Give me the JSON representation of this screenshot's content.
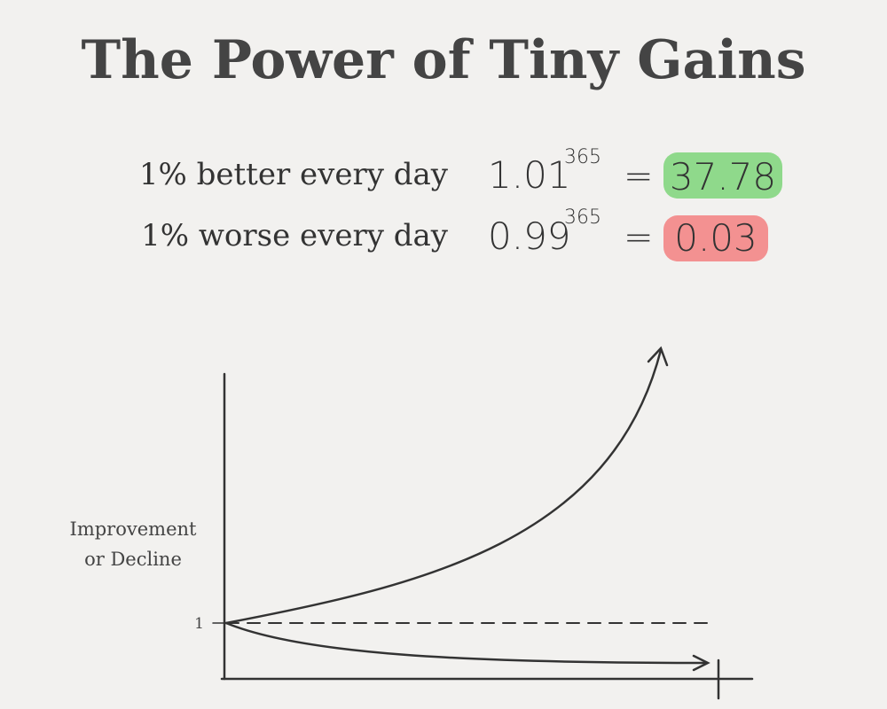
{
  "title": "The Power of Tiny Gains",
  "rows": [
    {
      "label": "1% better every day",
      "base": "1.01",
      "exponent": "365",
      "equals": "=",
      "result": "37.78"
    },
    {
      "label": "1% worse every day",
      "base": "0.99",
      "exponent": "365",
      "equals": "=",
      "result": "0.03"
    }
  ],
  "diagram": {
    "y_axis_label": [
      "Improvement",
      "or Decline"
    ],
    "baseline_label": "1"
  }
}
